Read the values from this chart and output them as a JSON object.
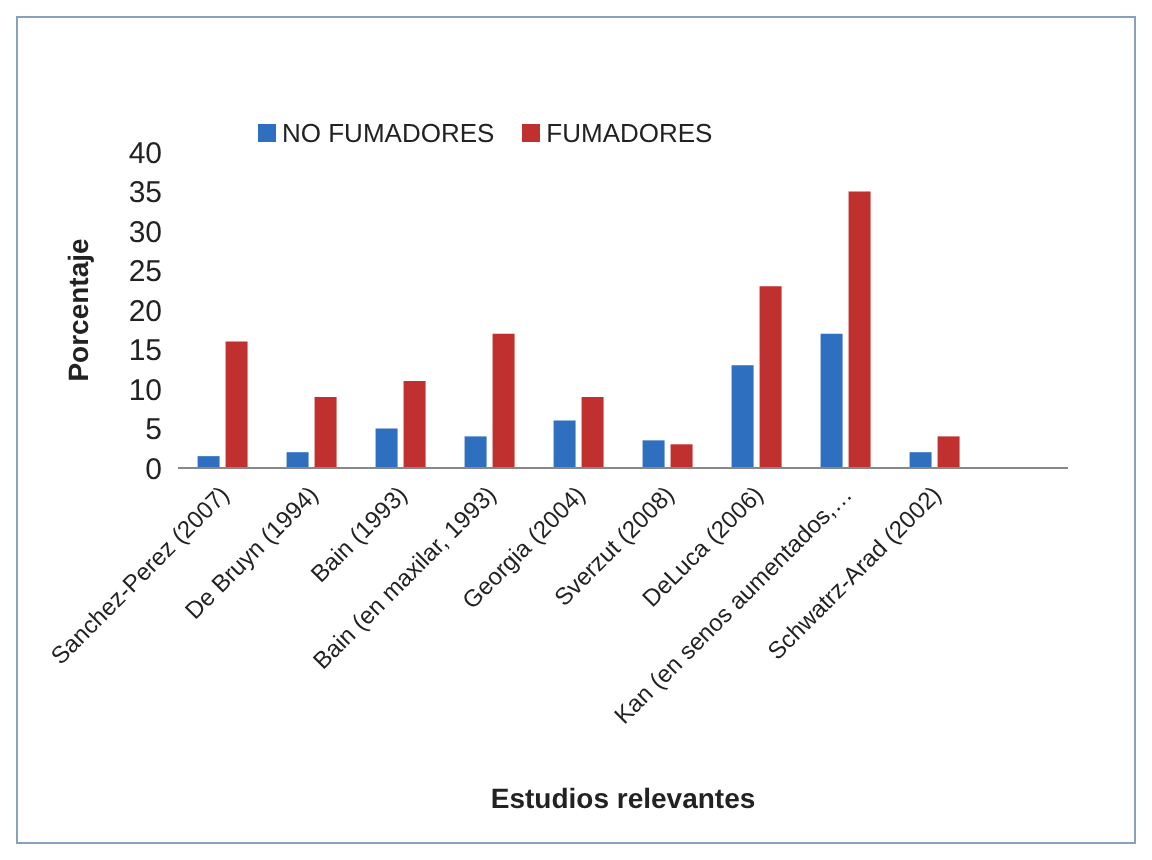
{
  "chart_data": {
    "type": "bar",
    "xlabel": "Estudios relevantes",
    "ylabel": "Porcentaje",
    "categories": [
      "Sanchez-Perez (2007)",
      "De Bruyn (1994)",
      "Bain (1993)",
      "Bain (en maxilar, 1993)",
      "Georgia (2004)",
      "Sverzut (2008)",
      "DeLuca (2006)",
      "Kan (en senos aumentados,…",
      "Schwatrz-Arad (2002)",
      null
    ],
    "series": [
      {
        "name": "NO FUMADORES",
        "color": "#2e6fc0",
        "values": [
          1.5,
          2,
          5,
          4,
          6,
          3.5,
          13,
          17,
          2,
          null
        ]
      },
      {
        "name": "FUMADORES",
        "color": "#c0302e",
        "values": [
          16,
          9,
          11,
          17,
          9,
          3,
          23,
          35,
          4,
          null
        ]
      }
    ],
    "ylim": [
      0,
      40
    ],
    "yticks": [
      0,
      5,
      10,
      15,
      20,
      25,
      30,
      35,
      40
    ],
    "grid": false,
    "legend": "top"
  }
}
